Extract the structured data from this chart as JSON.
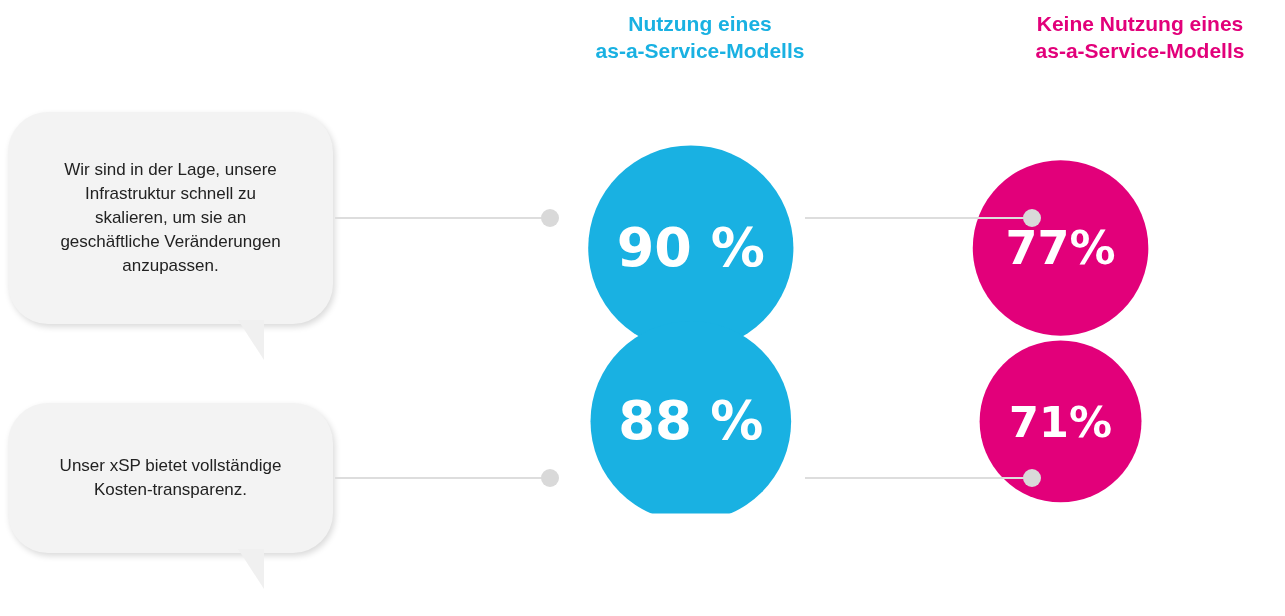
{
  "chart_data": {
    "type": "other",
    "categories": [
      "Wir sind in der Lage, unsere Infrastruktur schnell zu skalieren, um sie an geschäftliche Veränderungen anzupassen.",
      "Unser xSP bietet vollständige Kosten-transparenz."
    ],
    "series": [
      {
        "name": "Nutzung eines as-a-Service-Modells",
        "color": "#19b1e2",
        "values": [
          90,
          88
        ],
        "value_labels": [
          "90 %",
          "88 %"
        ]
      },
      {
        "name": "Keine Nutzung eines as-a-Service-Modells",
        "color": "#e2007a",
        "values": [
          77,
          71
        ],
        "value_labels": [
          "77%",
          "71%"
        ]
      }
    ]
  }
}
